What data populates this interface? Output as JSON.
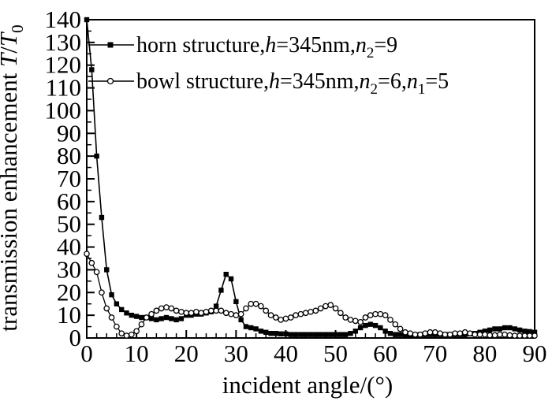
{
  "colors": {
    "ink": "#000000",
    "background": "#ffffff"
  },
  "chart_data": {
    "type": "line",
    "title": "",
    "xlabel": "incident angle/(°)",
    "ylabel_text": "transmission enhancement T/T0",
    "ylabel_parts": [
      {
        "t": "transmission enhancement "
      },
      {
        "t": "T",
        "italic": true
      },
      {
        "t": "/"
      },
      {
        "t": "T",
        "italic": true
      },
      {
        "t": "0",
        "sub": true
      }
    ],
    "xlim": [
      0,
      90
    ],
    "ylim": [
      0,
      140
    ],
    "x_major_ticks": [
      0,
      10,
      20,
      30,
      40,
      50,
      60,
      70,
      80,
      90
    ],
    "x_minor_step": 2,
    "y_major_ticks": [
      0,
      10,
      20,
      30,
      40,
      50,
      60,
      70,
      80,
      90,
      100,
      110,
      120,
      130,
      140
    ],
    "y_minor_step": 5,
    "grid": false,
    "legend": {
      "position": "top-left-inside",
      "items": [
        {
          "series": "horn",
          "marker": "filled-square",
          "label_text": "horn structure,h=345nm,n2=9",
          "parts": [
            {
              "t": "horn structure,"
            },
            {
              "t": "h",
              "italic": true
            },
            {
              "t": "=345nm,"
            },
            {
              "t": "n",
              "italic": true
            },
            {
              "t": "2",
              "sub": true
            },
            {
              "t": "=9"
            }
          ]
        },
        {
          "series": "bowl",
          "marker": "open-circle",
          "label_text": "bowl structure,h=345nm,n2=6,n1=5",
          "parts": [
            {
              "t": "bowl structure,"
            },
            {
              "t": "h",
              "italic": true
            },
            {
              "t": "=345nm,"
            },
            {
              "t": "n",
              "italic": true
            },
            {
              "t": "2",
              "sub": true
            },
            {
              "t": "=6,"
            },
            {
              "t": "n",
              "italic": true
            },
            {
              "t": "1",
              "sub": true
            },
            {
              "t": "=5"
            }
          ]
        }
      ]
    },
    "series": [
      {
        "id": "horn",
        "name": "horn structure",
        "marker": "filled-square",
        "line": "solid",
        "x_start": 0,
        "x_step": 1,
        "values": [
          140,
          118,
          80,
          53,
          30,
          19,
          15,
          12.5,
          11,
          10,
          9.5,
          9,
          9,
          8.5,
          8,
          8.5,
          9,
          8.5,
          8,
          8.5,
          10,
          10,
          10.5,
          10.5,
          11,
          11.5,
          14,
          21,
          28,
          26,
          16,
          8,
          5,
          4.5,
          4,
          3,
          2.5,
          2,
          2,
          1.8,
          1.8,
          1.5,
          1.5,
          1.5,
          1.5,
          1.5,
          1.5,
          1.5,
          1.5,
          1.5,
          1.5,
          1.5,
          1.5,
          2,
          3,
          4.5,
          5.5,
          6,
          5.5,
          4.5,
          3,
          2,
          1.5,
          1.5,
          1.2,
          1.2,
          1.2,
          1.5,
          1.5,
          1.5,
          1.5,
          1.5,
          1.5,
          1.5,
          1.5,
          1.5,
          1.5,
          1.8,
          2,
          2.5,
          3,
          3.5,
          4,
          4,
          4.5,
          4.5,
          4,
          3.5,
          3,
          2.8,
          2.5
        ]
      },
      {
        "id": "bowl",
        "name": "bowl structure",
        "marker": "open-circle",
        "line": "solid",
        "x_start": 0,
        "x_step": 1,
        "values": [
          37,
          33,
          29,
          20,
          13,
          9,
          5,
          2,
          1,
          1.5,
          3,
          6,
          9,
          10.5,
          12,
          13,
          13.5,
          13,
          12,
          11.5,
          11,
          11,
          11.5,
          11,
          11.5,
          12,
          12,
          12,
          11,
          10.5,
          10,
          10.5,
          13,
          15,
          15,
          14,
          12,
          10,
          9,
          8,
          8.5,
          9,
          10,
          10.5,
          11,
          11.5,
          12,
          13,
          14,
          14.5,
          13,
          11,
          9,
          8,
          7.5,
          7,
          9,
          10,
          10.5,
          10.5,
          10,
          8,
          6,
          4,
          2.5,
          2,
          1.5,
          1.5,
          2,
          2.5,
          2.5,
          2,
          1.5,
          1.5,
          2,
          2,
          2.5,
          2,
          1.5,
          1.5,
          1.5,
          1.2,
          1.2,
          1.5,
          1.5,
          1.2,
          1,
          1,
          1,
          1,
          1
        ]
      }
    ]
  }
}
